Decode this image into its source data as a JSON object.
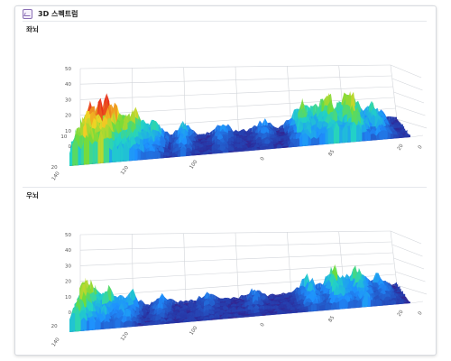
{
  "window": {
    "title": "3D 스펙트럼",
    "icon": "chart-window-icon"
  },
  "panels": [
    {
      "title": "좌뇌",
      "z_ticks": [
        "50",
        "40",
        "30",
        "20",
        "10",
        "0"
      ],
      "left_axis_ticks": [
        "10",
        "20"
      ],
      "front_axis_ticks": [
        "140",
        "120",
        "100",
        "0",
        "85",
        "20"
      ],
      "depth_axis_ticks": [
        "0"
      ]
    },
    {
      "title": "우뇌",
      "z_ticks": [
        "50",
        "40",
        "30",
        "20",
        "10",
        "0"
      ],
      "left_axis_ticks": [
        "20"
      ],
      "front_axis_ticks": [
        "140",
        "120",
        "100",
        "0",
        "85",
        "20"
      ],
      "depth_axis_ticks": [
        "0"
      ]
    }
  ],
  "colors": {
    "surface_low": "#2a1f8f",
    "surface_mid": "#1e90ff",
    "surface_cyan": "#22d3c5",
    "surface_green": "#6ddc3c",
    "surface_yellow": "#f2d324",
    "surface_high": "#e8361c",
    "grid": "#d2d5da"
  }
}
